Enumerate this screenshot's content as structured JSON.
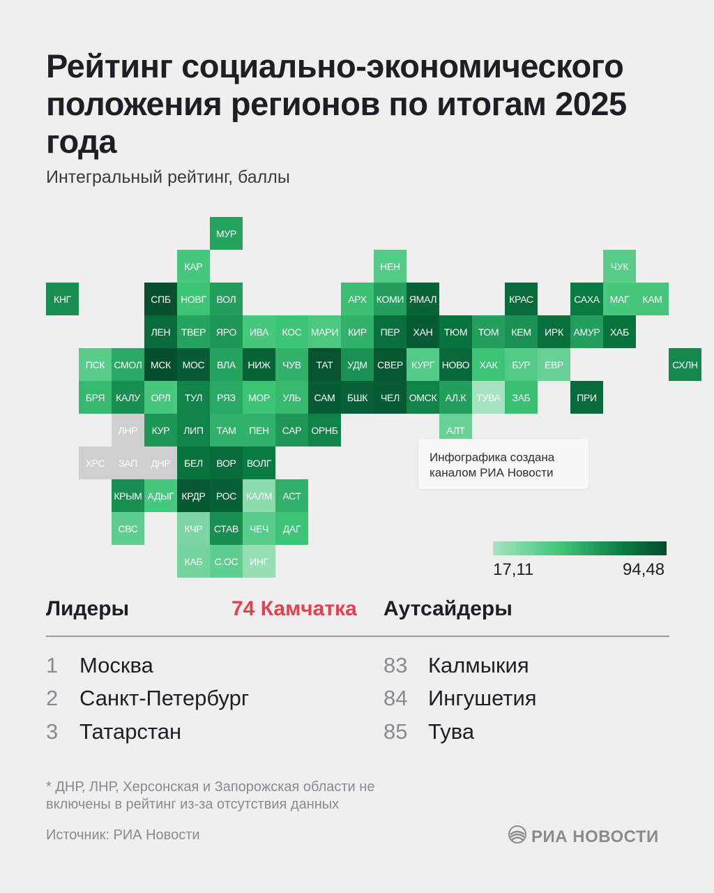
{
  "title": "Рейтинг социально-экономического положения регионов по итогам 2025 года",
  "subtitle": "Интегральный рейтинг, баллы",
  "note": "Инфографика создана каналом РИА Новости",
  "legend": {
    "min": "17,11",
    "max": "94,48",
    "colors": [
      "#a7e3c0",
      "#3ec477",
      "#0a7a43",
      "#064d2c"
    ]
  },
  "highlight": "74 Камчатка",
  "leaders": {
    "heading": "Лидеры",
    "items": [
      {
        "rank": "1",
        "name": "Москва"
      },
      {
        "rank": "2",
        "name": "Санкт-Петербург"
      },
      {
        "rank": "3",
        "name": "Татарстан"
      }
    ]
  },
  "outsiders": {
    "heading": "Аутсайдеры",
    "items": [
      {
        "rank": "83",
        "name": "Калмыкия"
      },
      {
        "rank": "84",
        "name": "Ингушетия"
      },
      {
        "rank": "85",
        "name": "Тува"
      }
    ]
  },
  "footnote": "* ДНР, ЛНР, Херсонская и Запорожская области не включены в рейтинг из-за отсутствия данных",
  "source": "Источник: РИА Новости",
  "logo_text": "РИА НОВОСТИ",
  "chart_data": {
    "type": "heatmap",
    "scale": {
      "min": 17.11,
      "max": 94.48
    },
    "cells": [
      {
        "label": "МУР",
        "col": 5,
        "row": 0,
        "value": 60
      },
      {
        "label": "КАР",
        "col": 4,
        "row": 1,
        "value": 45
      },
      {
        "label": "НЕН",
        "col": 10,
        "row": 1,
        "value": 42
      },
      {
        "label": "ЧУК",
        "col": 17,
        "row": 1,
        "value": 40
      },
      {
        "label": "КНГ",
        "col": 0,
        "row": 2,
        "value": 68
      },
      {
        "label": "СПБ",
        "col": 3,
        "row": 2,
        "value": 93
      },
      {
        "label": "НОВГ",
        "col": 4,
        "row": 2,
        "value": 48
      },
      {
        "label": "ВОЛ",
        "col": 5,
        "row": 2,
        "value": 62
      },
      {
        "label": "АРХ",
        "col": 9,
        "row": 2,
        "value": 50
      },
      {
        "label": "КОМИ",
        "col": 10,
        "row": 2,
        "value": 62
      },
      {
        "label": "ЯМАЛ",
        "col": 11,
        "row": 2,
        "value": 85
      },
      {
        "label": "КРАС",
        "col": 14,
        "row": 2,
        "value": 82
      },
      {
        "label": "САХА",
        "col": 16,
        "row": 2,
        "value": 75
      },
      {
        "label": "МАГ",
        "col": 17,
        "row": 2,
        "value": 45
      },
      {
        "label": "КАМ",
        "col": 18,
        "row": 2,
        "value": 46
      },
      {
        "label": "ЛЕН",
        "col": 3,
        "row": 3,
        "value": 82
      },
      {
        "label": "ТВЕР",
        "col": 4,
        "row": 3,
        "value": 60
      },
      {
        "label": "ЯРО",
        "col": 5,
        "row": 3,
        "value": 65
      },
      {
        "label": "ИВА",
        "col": 6,
        "row": 3,
        "value": 45
      },
      {
        "label": "КОС",
        "col": 7,
        "row": 3,
        "value": 48
      },
      {
        "label": "МАРИ",
        "col": 8,
        "row": 3,
        "value": 44
      },
      {
        "label": "КИР",
        "col": 9,
        "row": 3,
        "value": 55
      },
      {
        "label": "ПЕР",
        "col": 10,
        "row": 3,
        "value": 80
      },
      {
        "label": "ХАН",
        "col": 11,
        "row": 3,
        "value": 88
      },
      {
        "label": "ТЮМ",
        "col": 12,
        "row": 3,
        "value": 78
      },
      {
        "label": "ТОМ",
        "col": 13,
        "row": 3,
        "value": 62
      },
      {
        "label": "КЕМ",
        "col": 14,
        "row": 3,
        "value": 67
      },
      {
        "label": "ИРК",
        "col": 15,
        "row": 3,
        "value": 80
      },
      {
        "label": "АМУР",
        "col": 16,
        "row": 3,
        "value": 62
      },
      {
        "label": "ХАБ",
        "col": 17,
        "row": 3,
        "value": 78
      },
      {
        "label": "ПСК",
        "col": 1,
        "row": 4,
        "value": 40
      },
      {
        "label": "СМОЛ",
        "col": 2,
        "row": 4,
        "value": 58
      },
      {
        "label": "МСК",
        "col": 3,
        "row": 4,
        "value": 94.48
      },
      {
        "label": "МОС",
        "col": 4,
        "row": 4,
        "value": 88
      },
      {
        "label": "ВЛА",
        "col": 5,
        "row": 4,
        "value": 60
      },
      {
        "label": "НИЖ",
        "col": 6,
        "row": 4,
        "value": 85
      },
      {
        "label": "ЧУВ",
        "col": 7,
        "row": 4,
        "value": 55
      },
      {
        "label": "ТАТ",
        "col": 8,
        "row": 4,
        "value": 92
      },
      {
        "label": "УДМ",
        "col": 9,
        "row": 4,
        "value": 67
      },
      {
        "label": "СВЕР",
        "col": 10,
        "row": 4,
        "value": 90
      },
      {
        "label": "КУРГ",
        "col": 11,
        "row": 4,
        "value": 42
      },
      {
        "label": "НОВО",
        "col": 12,
        "row": 4,
        "value": 83
      },
      {
        "label": "ХАК",
        "col": 13,
        "row": 4,
        "value": 48
      },
      {
        "label": "БУР",
        "col": 14,
        "row": 4,
        "value": 42
      },
      {
        "label": "ЕВР",
        "col": 15,
        "row": 4,
        "value": 35
      },
      {
        "label": "СХЛН",
        "col": 19,
        "row": 4,
        "value": 70
      },
      {
        "label": "БРЯ",
        "col": 1,
        "row": 5,
        "value": 52
      },
      {
        "label": "КАЛУ",
        "col": 2,
        "row": 5,
        "value": 68
      },
      {
        "label": "ОРЛ",
        "col": 3,
        "row": 5,
        "value": 45
      },
      {
        "label": "ТУЛ",
        "col": 4,
        "row": 5,
        "value": 72
      },
      {
        "label": "РЯЗ",
        "col": 5,
        "row": 5,
        "value": 58
      },
      {
        "label": "МОР",
        "col": 6,
        "row": 5,
        "value": 48
      },
      {
        "label": "УЛЬ",
        "col": 7,
        "row": 5,
        "value": 52
      },
      {
        "label": "САМ",
        "col": 8,
        "row": 5,
        "value": 88
      },
      {
        "label": "БШК",
        "col": 9,
        "row": 5,
        "value": 86
      },
      {
        "label": "ЧЕЛ",
        "col": 10,
        "row": 5,
        "value": 88
      },
      {
        "label": "ОМСК",
        "col": 11,
        "row": 5,
        "value": 72
      },
      {
        "label": "АЛ.К",
        "col": 12,
        "row": 5,
        "value": 62
      },
      {
        "label": "ТУВА",
        "col": 13,
        "row": 5,
        "value": 17.11
      },
      {
        "label": "ЗАБ",
        "col": 14,
        "row": 5,
        "value": 50
      },
      {
        "label": "ПРИ",
        "col": 16,
        "row": 5,
        "value": 82
      },
      {
        "label": "ЛНР",
        "col": 2,
        "row": 6,
        "value": null
      },
      {
        "label": "КУР",
        "col": 3,
        "row": 6,
        "value": 65
      },
      {
        "label": "ЛИП",
        "col": 4,
        "row": 6,
        "value": 72
      },
      {
        "label": "ТАМ",
        "col": 5,
        "row": 6,
        "value": 55
      },
      {
        "label": "ПЕН",
        "col": 6,
        "row": 6,
        "value": 55
      },
      {
        "label": "САР",
        "col": 7,
        "row": 6,
        "value": 65
      },
      {
        "label": "ОРНБ",
        "col": 8,
        "row": 6,
        "value": 72
      },
      {
        "label": "АЛТ",
        "col": 12,
        "row": 6,
        "value": 35
      },
      {
        "label": "ХРС",
        "col": 1,
        "row": 7,
        "value": null
      },
      {
        "label": "ЗАП",
        "col": 2,
        "row": 7,
        "value": null
      },
      {
        "label": "ДНР",
        "col": 3,
        "row": 7,
        "value": null
      },
      {
        "label": "БЕЛ",
        "col": 4,
        "row": 7,
        "value": 78
      },
      {
        "label": "ВОР",
        "col": 5,
        "row": 7,
        "value": 82
      },
      {
        "label": "ВОЛГ",
        "col": 6,
        "row": 7,
        "value": 75
      },
      {
        "label": "КРЫМ",
        "col": 2,
        "row": 8,
        "value": 68
      },
      {
        "label": "АДЫГ",
        "col": 3,
        "row": 8,
        "value": 45
      },
      {
        "label": "КРДР",
        "col": 4,
        "row": 8,
        "value": 90
      },
      {
        "label": "РОС",
        "col": 5,
        "row": 8,
        "value": 86
      },
      {
        "label": "КАЛМ",
        "col": 6,
        "row": 8,
        "value": 25
      },
      {
        "label": "АСТ",
        "col": 7,
        "row": 8,
        "value": 55
      },
      {
        "label": "СВС",
        "col": 2,
        "row": 9,
        "value": 38
      },
      {
        "label": "КЧР",
        "col": 4,
        "row": 9,
        "value": 30
      },
      {
        "label": "СТАВ",
        "col": 5,
        "row": 9,
        "value": 68
      },
      {
        "label": "ЧЕЧ",
        "col": 6,
        "row": 9,
        "value": 40
      },
      {
        "label": "ДАГ",
        "col": 7,
        "row": 9,
        "value": 48
      },
      {
        "label": "КАБ",
        "col": 4,
        "row": 10,
        "value": 32
      },
      {
        "label": "С.ОС",
        "col": 5,
        "row": 10,
        "value": 38
      },
      {
        "label": "ИНГ",
        "col": 6,
        "row": 10,
        "value": 22
      }
    ]
  }
}
